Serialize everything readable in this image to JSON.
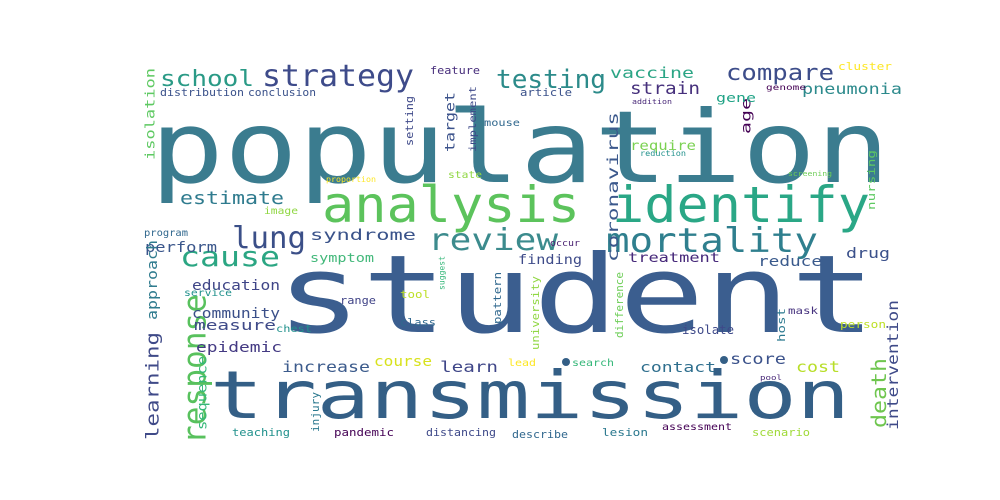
{
  "cloud": {
    "words": [
      {
        "id": "population",
        "text": "population",
        "color": "#3b7c8f"
      },
      {
        "id": "student",
        "text": "student",
        "color": "#3b5e8f"
      },
      {
        "id": "transmission",
        "text": "transmission",
        "color": "#345f86"
      },
      {
        "id": "analysis",
        "text": "analysis",
        "color": "#5cc35c"
      },
      {
        "id": "identify",
        "text": "identify",
        "color": "#2aa786"
      },
      {
        "id": "mortality",
        "text": "mortality",
        "color": "#2f7f8e"
      },
      {
        "id": "strategy",
        "text": "strategy",
        "color": "#3e4b8a"
      },
      {
        "id": "review",
        "text": "review",
        "color": "#3c8b8d"
      },
      {
        "id": "testing",
        "text": "testing",
        "color": "#2c8b8a"
      },
      {
        "id": "compare",
        "text": "compare",
        "color": "#3d4d8a"
      },
      {
        "id": "school",
        "text": "school",
        "color": "#2a9a86"
      },
      {
        "id": "lung",
        "text": "lung",
        "color": "#3b4f88"
      },
      {
        "id": "cause",
        "text": "cause",
        "color": "#2ba683"
      },
      {
        "id": "response",
        "text": "response",
        "color": "#58c15d"
      },
      {
        "id": "estimate",
        "text": "estimate",
        "color": "#2f7b8e"
      },
      {
        "id": "syndrome",
        "text": "syndrome",
        "color": "#3a538a"
      },
      {
        "id": "learning",
        "text": "learning",
        "color": "#3f4a88"
      },
      {
        "id": "death",
        "text": "death",
        "color": "#6fc64f"
      },
      {
        "id": "vaccine",
        "text": "vaccine",
        "color": "#2ba585"
      },
      {
        "id": "strain",
        "text": "strain",
        "color": "#46307c"
      },
      {
        "id": "pneumonia",
        "text": "pneumonia",
        "color": "#2c8a8c"
      },
      {
        "id": "coronavirus",
        "text": "coronavirus",
        "color": "#3b588c"
      },
      {
        "id": "treatment",
        "text": "treatment",
        "color": "#46287a"
      },
      {
        "id": "intervention",
        "text": "intervention",
        "color": "#3e4a88"
      },
      {
        "id": "epidemic",
        "text": "epidemic",
        "color": "#443a83"
      },
      {
        "id": "community",
        "text": "community",
        "color": "#3a4f89"
      },
      {
        "id": "education",
        "text": "education",
        "color": "#3f4587"
      },
      {
        "id": "perform",
        "text": "perform",
        "color": "#3a568b"
      },
      {
        "id": "approach",
        "text": "approach",
        "color": "#2f7b8e"
      },
      {
        "id": "symptom",
        "text": "symptom",
        "color": "#42b87a"
      },
      {
        "id": "measure",
        "text": "measure",
        "color": "#3f4a88"
      },
      {
        "id": "increase",
        "text": "increase",
        "color": "#3c5b8c"
      },
      {
        "id": "course",
        "text": "course",
        "color": "#d8e21c"
      },
      {
        "id": "learn",
        "text": "learn",
        "color": "#3f4688"
      },
      {
        "id": "contact",
        "text": "contact",
        "color": "#2f6f8e"
      },
      {
        "id": "score",
        "text": "score",
        "color": "#3b528b"
      },
      {
        "id": "cost",
        "text": "cost",
        "color": "#b8de29"
      },
      {
        "id": "drug",
        "text": "drug",
        "color": "#3b518b"
      },
      {
        "id": "reduce",
        "text": "reduce",
        "color": "#3a5a8c"
      },
      {
        "id": "finding",
        "text": "finding",
        "color": "#3e4b89"
      },
      {
        "id": "sequence",
        "text": "sequence",
        "color": "#35b779"
      },
      {
        "id": "isolation",
        "text": "isolation",
        "color": "#5ec962"
      },
      {
        "id": "target",
        "text": "target",
        "color": "#3b528b"
      },
      {
        "id": "require",
        "text": "require",
        "color": "#7ad151"
      },
      {
        "id": "age",
        "text": "age",
        "color": "#440154"
      },
      {
        "id": "gene",
        "text": "gene",
        "color": "#20a386"
      },
      {
        "id": "distribution",
        "text": "distribution",
        "color": "#3b528b"
      },
      {
        "id": "conclusion",
        "text": "conclusion",
        "color": "#3b528b"
      },
      {
        "id": "feature",
        "text": "feature",
        "color": "#472d7b"
      },
      {
        "id": "article",
        "text": "article",
        "color": "#3b528b"
      },
      {
        "id": "cluster",
        "text": "cluster",
        "color": "#fde725"
      },
      {
        "id": "genome",
        "text": "genome",
        "color": "#440154"
      },
      {
        "id": "addition",
        "text": "addition",
        "color": "#482878"
      },
      {
        "id": "reduction",
        "text": "reduction",
        "color": "#21918c"
      },
      {
        "id": "screening",
        "text": "screening",
        "color": "#6ece58"
      },
      {
        "id": "nursing",
        "text": "nursing",
        "color": "#5ec962"
      },
      {
        "id": "setting",
        "text": "setting",
        "color": "#3e4989"
      },
      {
        "id": "implement",
        "text": "implement",
        "color": "#3e4989"
      },
      {
        "id": "mouse",
        "text": "mouse",
        "color": "#31688e"
      },
      {
        "id": "proportion",
        "text": "proportion",
        "color": "#fde725"
      },
      {
        "id": "state",
        "text": "state",
        "color": "#90d743"
      },
      {
        "id": "image",
        "text": "image",
        "color": "#90d743"
      },
      {
        "id": "program",
        "text": "program",
        "color": "#31688e"
      },
      {
        "id": "occur",
        "text": "occur",
        "color": "#481f70"
      },
      {
        "id": "suggest",
        "text": "suggest",
        "color": "#35b779"
      },
      {
        "id": "service",
        "text": "service",
        "color": "#21918c"
      },
      {
        "id": "range",
        "text": "range",
        "color": "#414487"
      },
      {
        "id": "tool",
        "text": "tool",
        "color": "#bddf26"
      },
      {
        "id": "chest",
        "text": "chest",
        "color": "#21918c"
      },
      {
        "id": "class",
        "text": "class",
        "color": "#31688e"
      },
      {
        "id": "pattern",
        "text": "pattern",
        "color": "#31688e"
      },
      {
        "id": "university",
        "text": "university",
        "color": "#90d743"
      },
      {
        "id": "difference",
        "text": "difference",
        "color": "#6ece58"
      },
      {
        "id": "isolate",
        "text": "isolate",
        "color": "#3e4989"
      },
      {
        "id": "host",
        "text": "host",
        "color": "#2a788e"
      },
      {
        "id": "mask",
        "text": "mask",
        "color": "#46327e"
      },
      {
        "id": "person",
        "text": "person",
        "color": "#bddf26"
      },
      {
        "id": "lead",
        "text": "lead",
        "color": "#fde725"
      },
      {
        "id": "search",
        "text": "search",
        "color": "#35b779"
      },
      {
        "id": "pool",
        "text": "pool",
        "color": "#482878"
      },
      {
        "id": "scenario",
        "text": "scenario",
        "color": "#a0da39"
      },
      {
        "id": "assessment",
        "text": "assessment",
        "color": "#440154"
      },
      {
        "id": "lesion",
        "text": "lesion",
        "color": "#2a788e"
      },
      {
        "id": "describe",
        "text": "describe",
        "color": "#31688e"
      },
      {
        "id": "distancing",
        "text": "distancing",
        "color": "#3e4989"
      },
      {
        "id": "pandemic",
        "text": "pandemic",
        "color": "#440154"
      },
      {
        "id": "injury",
        "text": "injury",
        "color": "#2a788e"
      },
      {
        "id": "teaching",
        "text": "teaching",
        "color": "#21918c"
      }
    ]
  }
}
